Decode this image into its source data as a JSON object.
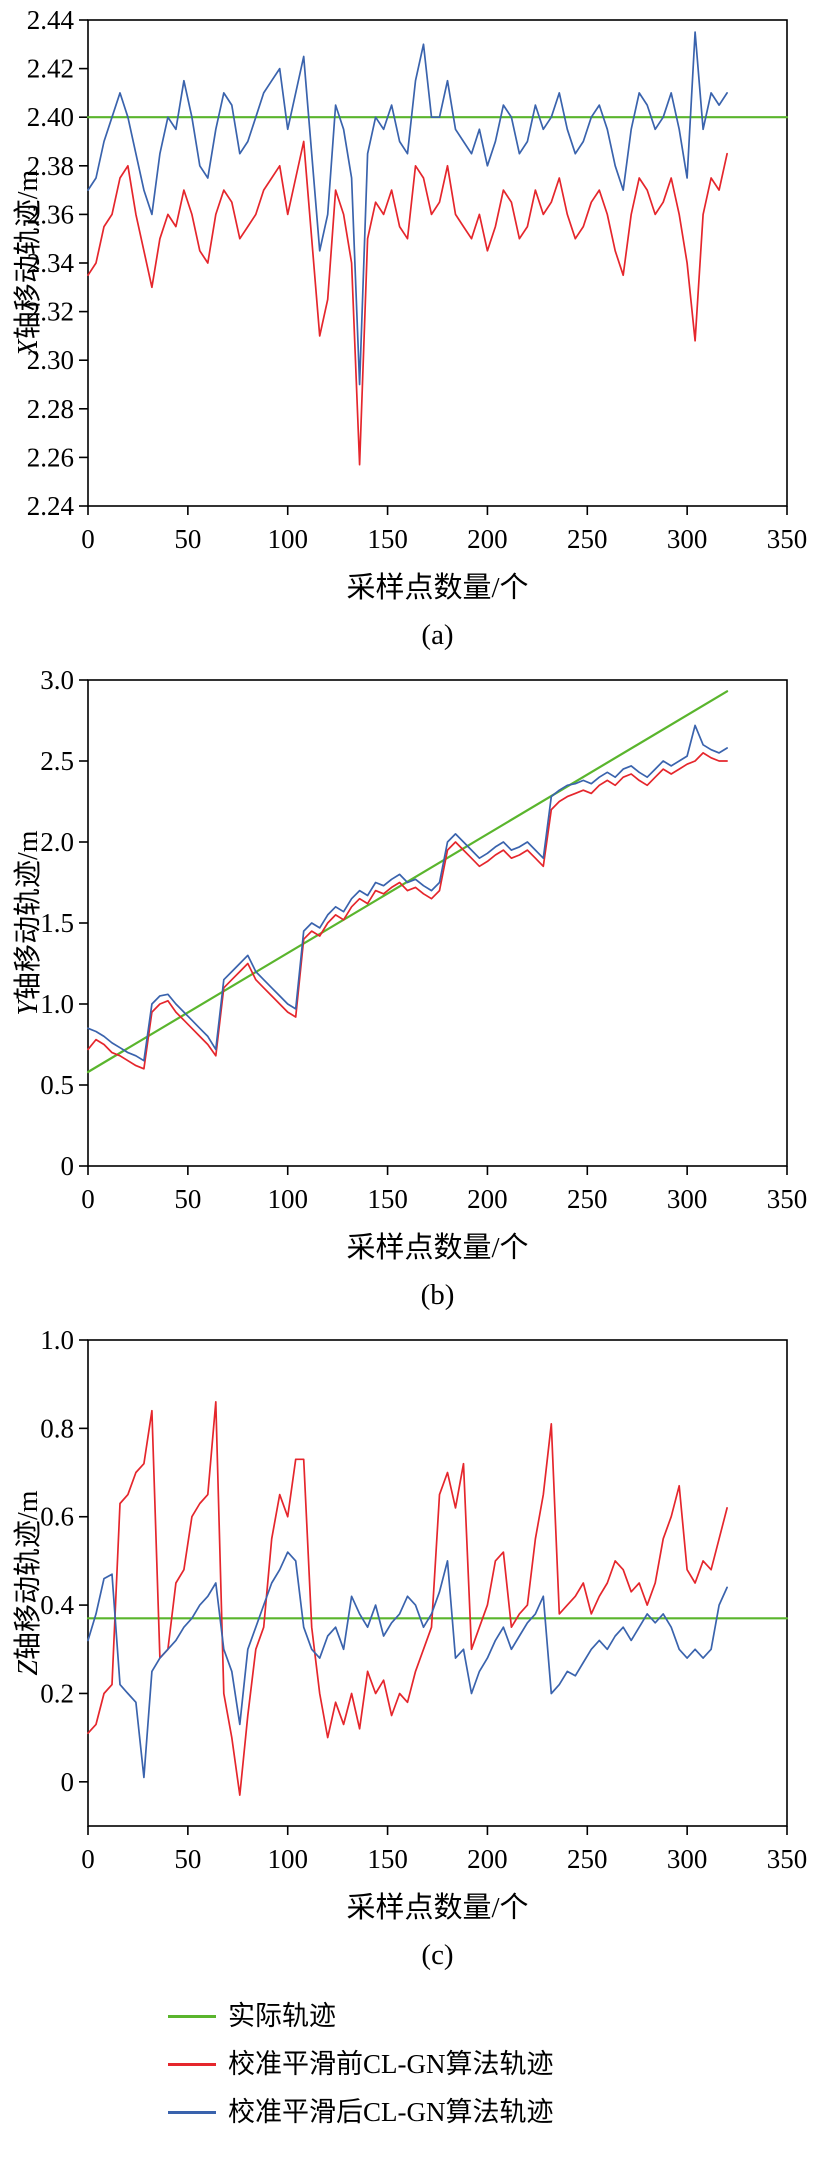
{
  "colors": {
    "actual": "#5ab52d",
    "before": "#e5262c",
    "after": "#3a63ad",
    "axis": "#000000"
  },
  "legend": {
    "items": [
      {
        "label": "实际轨迹",
        "color_key": "actual"
      },
      {
        "label": "校准平滑前CL-GN算法轨迹",
        "color_key": "before"
      },
      {
        "label": "校准平滑后CL-GN算法轨迹",
        "color_key": "after"
      }
    ]
  },
  "chart_data": [
    {
      "type": "line",
      "caption": "(a)",
      "xlabel": "采样点数量/个",
      "ylabel": "X轴移动轨迹/m",
      "xlim": [
        0,
        350
      ],
      "ylim": [
        2.24,
        2.44
      ],
      "xticks": [
        0,
        50,
        100,
        150,
        200,
        250,
        300,
        350
      ],
      "xtick_labels": [
        "0",
        "50",
        "100",
        "150",
        "200",
        "250",
        "300",
        "350"
      ],
      "yticks": [
        2.24,
        2.26,
        2.28,
        2.3,
        2.32,
        2.34,
        2.36,
        2.38,
        2.4,
        2.42,
        2.44
      ],
      "ytick_labels": [
        "2.24",
        "2.26",
        "2.28",
        "2.30",
        "2.32",
        "2.34",
        "2.36",
        "2.38",
        "2.40",
        "2.42",
        "2.44"
      ],
      "grid": false,
      "series": [
        {
          "name": "实际轨迹",
          "color_key": "actual",
          "width": 2.2,
          "x": [
            0,
            350
          ],
          "y": [
            2.4,
            2.4
          ]
        },
        {
          "name": "校准平滑前CL-GN算法轨迹",
          "color_key": "before",
          "width": 1.7,
          "x_start": 0,
          "x_step": 4,
          "y": [
            2.335,
            2.34,
            2.355,
            2.36,
            2.375,
            2.38,
            2.36,
            2.345,
            2.33,
            2.35,
            2.36,
            2.355,
            2.37,
            2.36,
            2.345,
            2.34,
            2.36,
            2.37,
            2.365,
            2.35,
            2.355,
            2.36,
            2.37,
            2.375,
            2.38,
            2.36,
            2.375,
            2.39,
            2.35,
            2.31,
            2.325,
            2.37,
            2.36,
            2.34,
            2.257,
            2.35,
            2.365,
            2.36,
            2.37,
            2.355,
            2.35,
            2.38,
            2.375,
            2.36,
            2.365,
            2.38,
            2.36,
            2.355,
            2.35,
            2.36,
            2.345,
            2.355,
            2.37,
            2.365,
            2.35,
            2.355,
            2.37,
            2.36,
            2.365,
            2.375,
            2.36,
            2.35,
            2.355,
            2.365,
            2.37,
            2.36,
            2.345,
            2.335,
            2.36,
            2.375,
            2.37,
            2.36,
            2.365,
            2.375,
            2.36,
            2.34,
            2.308,
            2.36,
            2.375,
            2.37,
            2.385
          ]
        },
        {
          "name": "校准平滑后CL-GN算法轨迹",
          "color_key": "after",
          "width": 1.7,
          "x_start": 0,
          "x_step": 4,
          "y": [
            2.37,
            2.375,
            2.39,
            2.4,
            2.41,
            2.4,
            2.385,
            2.37,
            2.36,
            2.385,
            2.4,
            2.395,
            2.415,
            2.4,
            2.38,
            2.375,
            2.395,
            2.41,
            2.405,
            2.385,
            2.39,
            2.4,
            2.41,
            2.415,
            2.42,
            2.395,
            2.41,
            2.425,
            2.385,
            2.345,
            2.36,
            2.405,
            2.395,
            2.375,
            2.29,
            2.385,
            2.4,
            2.395,
            2.405,
            2.39,
            2.385,
            2.415,
            2.43,
            2.4,
            2.4,
            2.415,
            2.395,
            2.39,
            2.385,
            2.395,
            2.38,
            2.39,
            2.405,
            2.4,
            2.385,
            2.39,
            2.405,
            2.395,
            2.4,
            2.41,
            2.395,
            2.385,
            2.39,
            2.4,
            2.405,
            2.395,
            2.38,
            2.37,
            2.395,
            2.41,
            2.405,
            2.395,
            2.4,
            2.41,
            2.395,
            2.375,
            2.435,
            2.395,
            2.41,
            2.405,
            2.41
          ]
        }
      ]
    },
    {
      "type": "line",
      "caption": "(b)",
      "xlabel": "采样点数量/个",
      "ylabel": "Y轴移动轨迹/m",
      "xlim": [
        0,
        350
      ],
      "ylim": [
        0,
        3.0
      ],
      "xticks": [
        0,
        50,
        100,
        150,
        200,
        250,
        300,
        350
      ],
      "xtick_labels": [
        "0",
        "50",
        "100",
        "150",
        "200",
        "250",
        "300",
        "350"
      ],
      "yticks": [
        0,
        0.5,
        1.0,
        1.5,
        2.0,
        2.5,
        3.0
      ],
      "ytick_labels": [
        "0",
        "0.5",
        "1.0",
        "1.5",
        "2.0",
        "2.5",
        "3.0"
      ],
      "grid": false,
      "series": [
        {
          "name": "实际轨迹",
          "color_key": "actual",
          "width": 2.2,
          "x": [
            0,
            320
          ],
          "y": [
            0.58,
            2.93
          ]
        },
        {
          "name": "校准平滑前CL-GN算法轨迹",
          "color_key": "before",
          "width": 1.7,
          "x_start": 0,
          "x_step": 4,
          "y": [
            0.72,
            0.78,
            0.75,
            0.7,
            0.68,
            0.65,
            0.62,
            0.6,
            0.95,
            1.0,
            1.02,
            0.95,
            0.9,
            0.85,
            0.8,
            0.75,
            0.68,
            1.1,
            1.15,
            1.2,
            1.25,
            1.15,
            1.1,
            1.05,
            1.0,
            0.95,
            0.92,
            1.4,
            1.45,
            1.42,
            1.5,
            1.55,
            1.52,
            1.6,
            1.65,
            1.62,
            1.7,
            1.68,
            1.72,
            1.75,
            1.7,
            1.72,
            1.68,
            1.65,
            1.7,
            1.95,
            2.0,
            1.95,
            1.9,
            1.85,
            1.88,
            1.92,
            1.95,
            1.9,
            1.92,
            1.95,
            1.9,
            1.85,
            2.2,
            2.25,
            2.28,
            2.3,
            2.32,
            2.3,
            2.35,
            2.38,
            2.35,
            2.4,
            2.42,
            2.38,
            2.35,
            2.4,
            2.45,
            2.42,
            2.45,
            2.48,
            2.5,
            2.55,
            2.52,
            2.5,
            2.5
          ]
        },
        {
          "name": "校准平滑后CL-GN算法轨迹",
          "color_key": "after",
          "width": 1.7,
          "x_start": 0,
          "x_step": 4,
          "y": [
            0.85,
            0.83,
            0.8,
            0.76,
            0.73,
            0.7,
            0.68,
            0.65,
            1.0,
            1.05,
            1.06,
            1.0,
            0.95,
            0.9,
            0.85,
            0.8,
            0.72,
            1.15,
            1.2,
            1.25,
            1.3,
            1.2,
            1.15,
            1.1,
            1.05,
            1.0,
            0.97,
            1.45,
            1.5,
            1.47,
            1.55,
            1.6,
            1.57,
            1.65,
            1.7,
            1.67,
            1.75,
            1.73,
            1.77,
            1.8,
            1.75,
            1.77,
            1.73,
            1.7,
            1.75,
            2.0,
            2.05,
            2.0,
            1.95,
            1.9,
            1.93,
            1.97,
            2.0,
            1.95,
            1.97,
            2.0,
            1.95,
            1.9,
            2.28,
            2.32,
            2.35,
            2.36,
            2.38,
            2.36,
            2.4,
            2.43,
            2.4,
            2.45,
            2.47,
            2.43,
            2.4,
            2.45,
            2.5,
            2.47,
            2.5,
            2.53,
            2.72,
            2.6,
            2.57,
            2.55,
            2.58
          ]
        }
      ]
    },
    {
      "type": "line",
      "caption": "(c)",
      "xlabel": "采样点数量/个",
      "ylabel": "Z轴移动轨迹/m",
      "xlim": [
        0,
        350
      ],
      "ylim": [
        -0.1,
        1.0
      ],
      "xticks": [
        0,
        50,
        100,
        150,
        200,
        250,
        300,
        350
      ],
      "xtick_labels": [
        "0",
        "50",
        "100",
        "150",
        "200",
        "250",
        "300",
        "350"
      ],
      "yticks": [
        0,
        0.2,
        0.4,
        0.6,
        0.8,
        1.0
      ],
      "ytick_labels": [
        "0",
        "0.2",
        "0.4",
        "0.6",
        "0.8",
        "1.0"
      ],
      "grid": false,
      "series": [
        {
          "name": "实际轨迹",
          "color_key": "actual",
          "width": 2.2,
          "x": [
            0,
            350
          ],
          "y": [
            0.37,
            0.37
          ]
        },
        {
          "name": "校准平滑前CL-GN算法轨迹",
          "color_key": "before",
          "width": 1.7,
          "x_start": 0,
          "x_step": 4,
          "y": [
            0.11,
            0.13,
            0.2,
            0.22,
            0.63,
            0.65,
            0.7,
            0.72,
            0.84,
            0.28,
            0.3,
            0.45,
            0.48,
            0.6,
            0.63,
            0.65,
            0.86,
            0.2,
            0.1,
            -0.03,
            0.15,
            0.3,
            0.35,
            0.55,
            0.65,
            0.6,
            0.73,
            0.73,
            0.35,
            0.2,
            0.1,
            0.18,
            0.13,
            0.2,
            0.12,
            0.25,
            0.2,
            0.23,
            0.15,
            0.2,
            0.18,
            0.25,
            0.3,
            0.35,
            0.65,
            0.7,
            0.62,
            0.72,
            0.3,
            0.35,
            0.4,
            0.5,
            0.52,
            0.35,
            0.38,
            0.4,
            0.55,
            0.65,
            0.81,
            0.38,
            0.4,
            0.42,
            0.45,
            0.38,
            0.42,
            0.45,
            0.5,
            0.48,
            0.43,
            0.45,
            0.4,
            0.45,
            0.55,
            0.6,
            0.67,
            0.48,
            0.45,
            0.5,
            0.48,
            0.55,
            0.62
          ]
        },
        {
          "name": "校准平滑后CL-GN算法轨迹",
          "color_key": "after",
          "width": 1.7,
          "x_start": 0,
          "x_step": 4,
          "y": [
            0.32,
            0.38,
            0.46,
            0.47,
            0.22,
            0.2,
            0.18,
            0.01,
            0.25,
            0.28,
            0.3,
            0.32,
            0.35,
            0.37,
            0.4,
            0.42,
            0.45,
            0.3,
            0.25,
            0.13,
            0.3,
            0.35,
            0.4,
            0.45,
            0.48,
            0.52,
            0.5,
            0.35,
            0.3,
            0.28,
            0.33,
            0.35,
            0.3,
            0.42,
            0.38,
            0.35,
            0.4,
            0.33,
            0.36,
            0.38,
            0.42,
            0.4,
            0.35,
            0.38,
            0.43,
            0.5,
            0.28,
            0.3,
            0.2,
            0.25,
            0.28,
            0.32,
            0.35,
            0.3,
            0.33,
            0.36,
            0.38,
            0.42,
            0.2,
            0.22,
            0.25,
            0.24,
            0.27,
            0.3,
            0.32,
            0.3,
            0.33,
            0.35,
            0.32,
            0.35,
            0.38,
            0.36,
            0.38,
            0.35,
            0.3,
            0.28,
            0.3,
            0.28,
            0.3,
            0.4,
            0.44
          ]
        }
      ]
    }
  ]
}
